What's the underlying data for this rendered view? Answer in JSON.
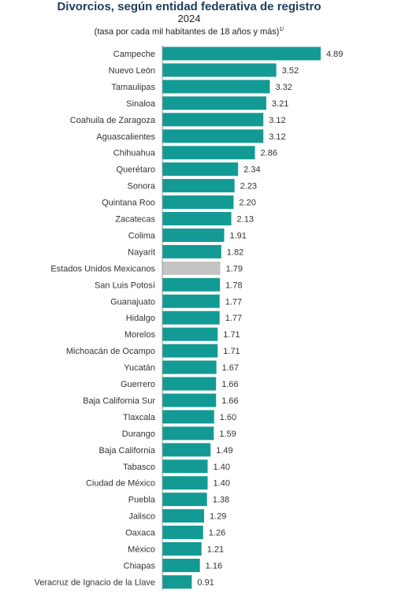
{
  "chart_data": {
    "type": "bar",
    "orientation": "horizontal",
    "title": "Divorcios, según entidad federativa de registro",
    "year": "2024",
    "subtitle": "(tasa por cada mil habitantes de 18 años y más)",
    "subtitle_note": "1/",
    "bar_color": "#139a94",
    "highlight_color": "#c4c4c4",
    "highlight_category": "Estados Unidos Mexicanos",
    "grid": false,
    "categories": [
      "Campeche",
      "Nuevo León",
      "Tamaulipas",
      "Sinaloa",
      "Coahuila de Zaragoza",
      "Aguascalientes",
      "Chihuahua",
      "Querétaro",
      "Sonora",
      "Quintana Roo",
      "Zacatecas",
      "Colima",
      "Nayarit",
      "Estados Unidos Mexicanos",
      "San Luis Potosí",
      "Guanajuato",
      "Hidalgo",
      "Morelos",
      "Michoacán de Ocampo",
      "Yucatán",
      "Guerrero",
      "Baja California Sur",
      "Tlaxcala",
      "Durango",
      "Baja California",
      "Tabasco",
      "Ciudad de México",
      "Puebla",
      "Jalisco",
      "Oaxaca",
      "México",
      "Chiapas",
      "Veracruz de Ignacio de la Llave"
    ],
    "values": [
      4.89,
      3.52,
      3.32,
      3.21,
      3.12,
      3.12,
      2.86,
      2.34,
      2.23,
      2.2,
      2.13,
      1.91,
      1.82,
      1.79,
      1.78,
      1.77,
      1.77,
      1.71,
      1.71,
      1.67,
      1.66,
      1.66,
      1.6,
      1.59,
      1.49,
      1.4,
      1.4,
      1.38,
      1.29,
      1.26,
      1.21,
      1.16,
      0.91
    ],
    "value_labels": [
      "4.89",
      "3.52",
      "3.32",
      "3.21",
      "3.12",
      "3.12",
      "2.86",
      "2.34",
      "2.23",
      "2.20",
      "2.13",
      "1.91",
      "1.82",
      "1.79",
      "1.78",
      "1.77",
      "1.77",
      "1.71",
      "1.71",
      "1.67",
      "1.66",
      "1.66",
      "1.60",
      "1.59",
      "1.49",
      "1.40",
      "1.40",
      "1.38",
      "1.29",
      "1.26",
      "1.21",
      "1.16",
      "0.91"
    ]
  }
}
